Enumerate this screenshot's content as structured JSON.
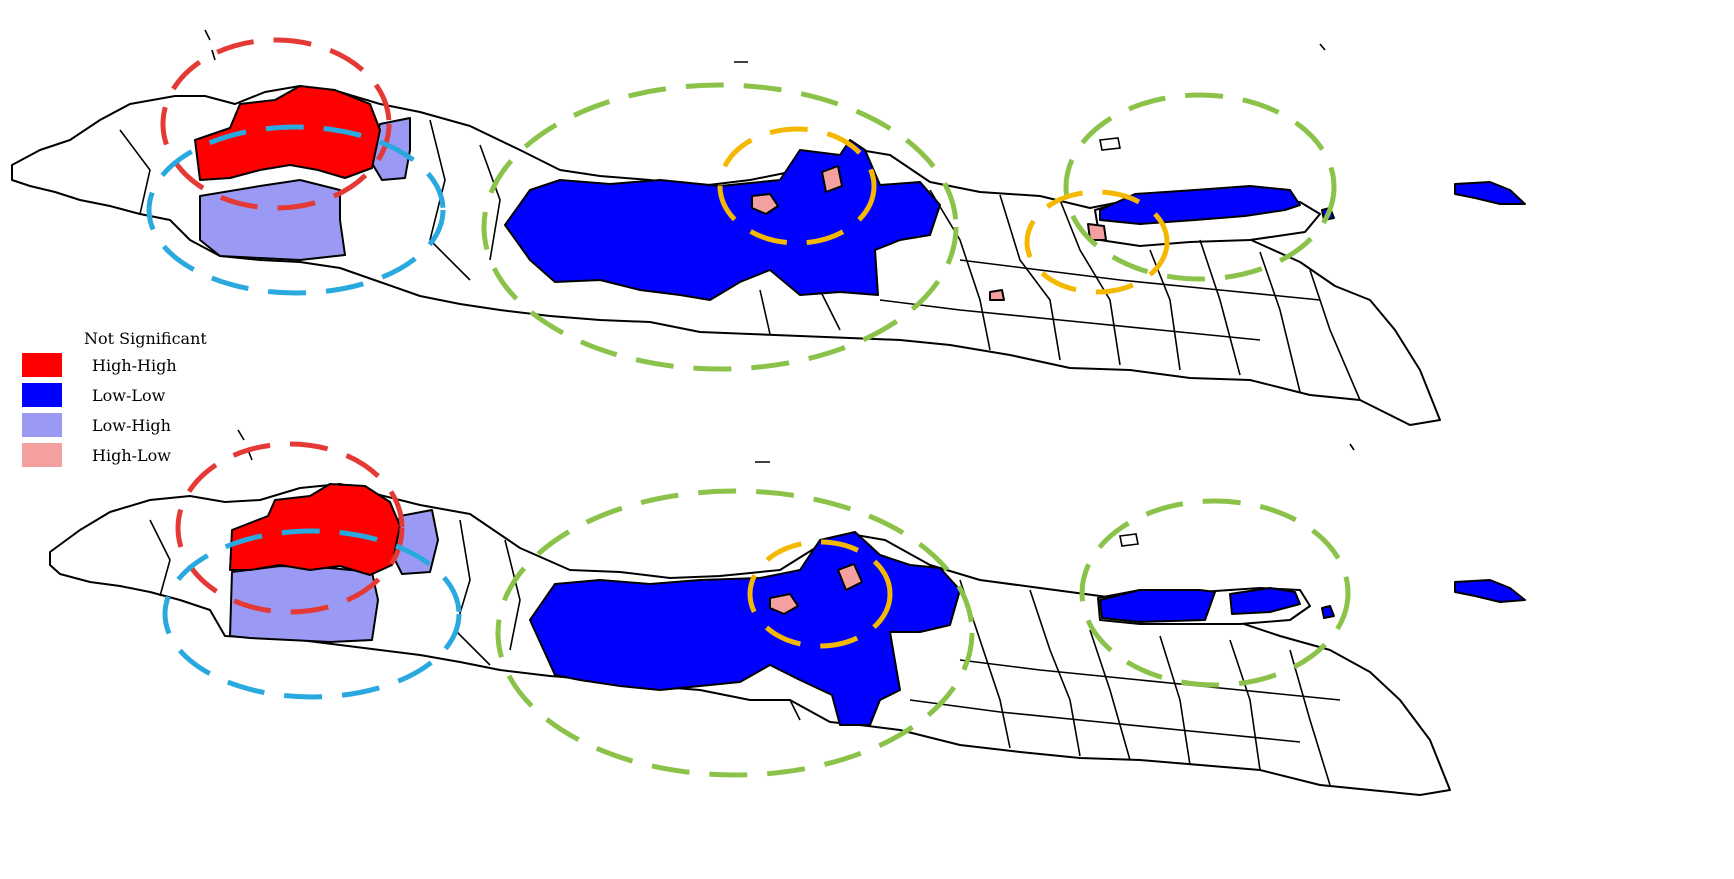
{
  "legend": {
    "title": "Not Significant",
    "items": [
      {
        "label": "High-High",
        "color": "#ff0000"
      },
      {
        "label": "Low-Low",
        "color": "#0000ff"
      },
      {
        "label": "Low-High",
        "color": "#9a9af5"
      },
      {
        "label": "High-Low",
        "color": "#f4a0a0"
      }
    ]
  },
  "colors": {
    "not_significant": "#ffffff",
    "high_high": "#ff0000",
    "low_low": "#0000ff",
    "low_high": "#9a9af5",
    "high_low": "#f4a0a0",
    "cluster_ring_high_high": "#e53935",
    "cluster_ring_low_high": "#29a9e0",
    "cluster_ring_low_low": "#8bc34a",
    "cluster_ring_high_low": "#f5b800"
  },
  "maps": [
    {
      "id": "map-top"
    },
    {
      "id": "map-bottom"
    }
  ]
}
